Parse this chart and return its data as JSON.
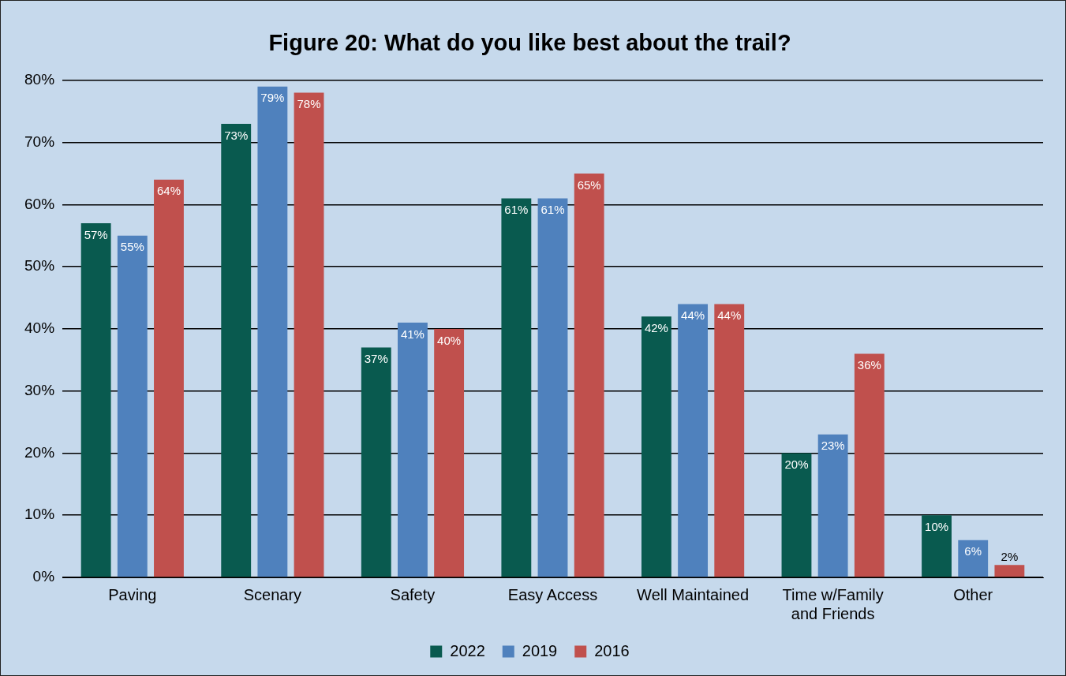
{
  "chart_data": {
    "type": "bar",
    "title": "Figure 20: What do you like best about the trail?",
    "categories": [
      "Paving",
      "Scenary",
      "Safety",
      "Easy Access",
      "Well Maintained",
      "Time w/Family and Friends",
      "Other"
    ],
    "series": [
      {
        "name": "2022",
        "color": "#095a4f",
        "values": [
          57,
          73,
          37,
          61,
          42,
          20,
          10
        ],
        "value_labels": [
          "57%",
          "73%",
          "37%",
          "61%",
          "42%",
          "20%",
          "10%"
        ]
      },
      {
        "name": "2019",
        "color": "#4f81bd",
        "values": [
          55,
          79,
          41,
          61,
          44,
          23,
          6
        ],
        "value_labels": [
          "55%",
          "79%",
          "41%",
          "61%",
          "44%",
          "23%",
          "6%"
        ]
      },
      {
        "name": "2016",
        "color": "#c0504d",
        "values": [
          64,
          78,
          40,
          65,
          44,
          36,
          2
        ],
        "value_labels": [
          "64%",
          "78%",
          "40%",
          "65%",
          "44%",
          "36%",
          "2%"
        ]
      }
    ],
    "ylim": [
      0,
      80
    ],
    "yticks": [
      {
        "value": 0,
        "label": "0%"
      },
      {
        "value": 10,
        "label": "10%"
      },
      {
        "value": 20,
        "label": "20%"
      },
      {
        "value": 30,
        "label": "30%"
      },
      {
        "value": 40,
        "label": "40%"
      },
      {
        "value": 50,
        "label": "50%"
      },
      {
        "value": 60,
        "label": "60%"
      },
      {
        "value": 70,
        "label": "70%"
      },
      {
        "value": 80,
        "label": "80%"
      }
    ],
    "grid": "y",
    "legend": "bottom"
  }
}
